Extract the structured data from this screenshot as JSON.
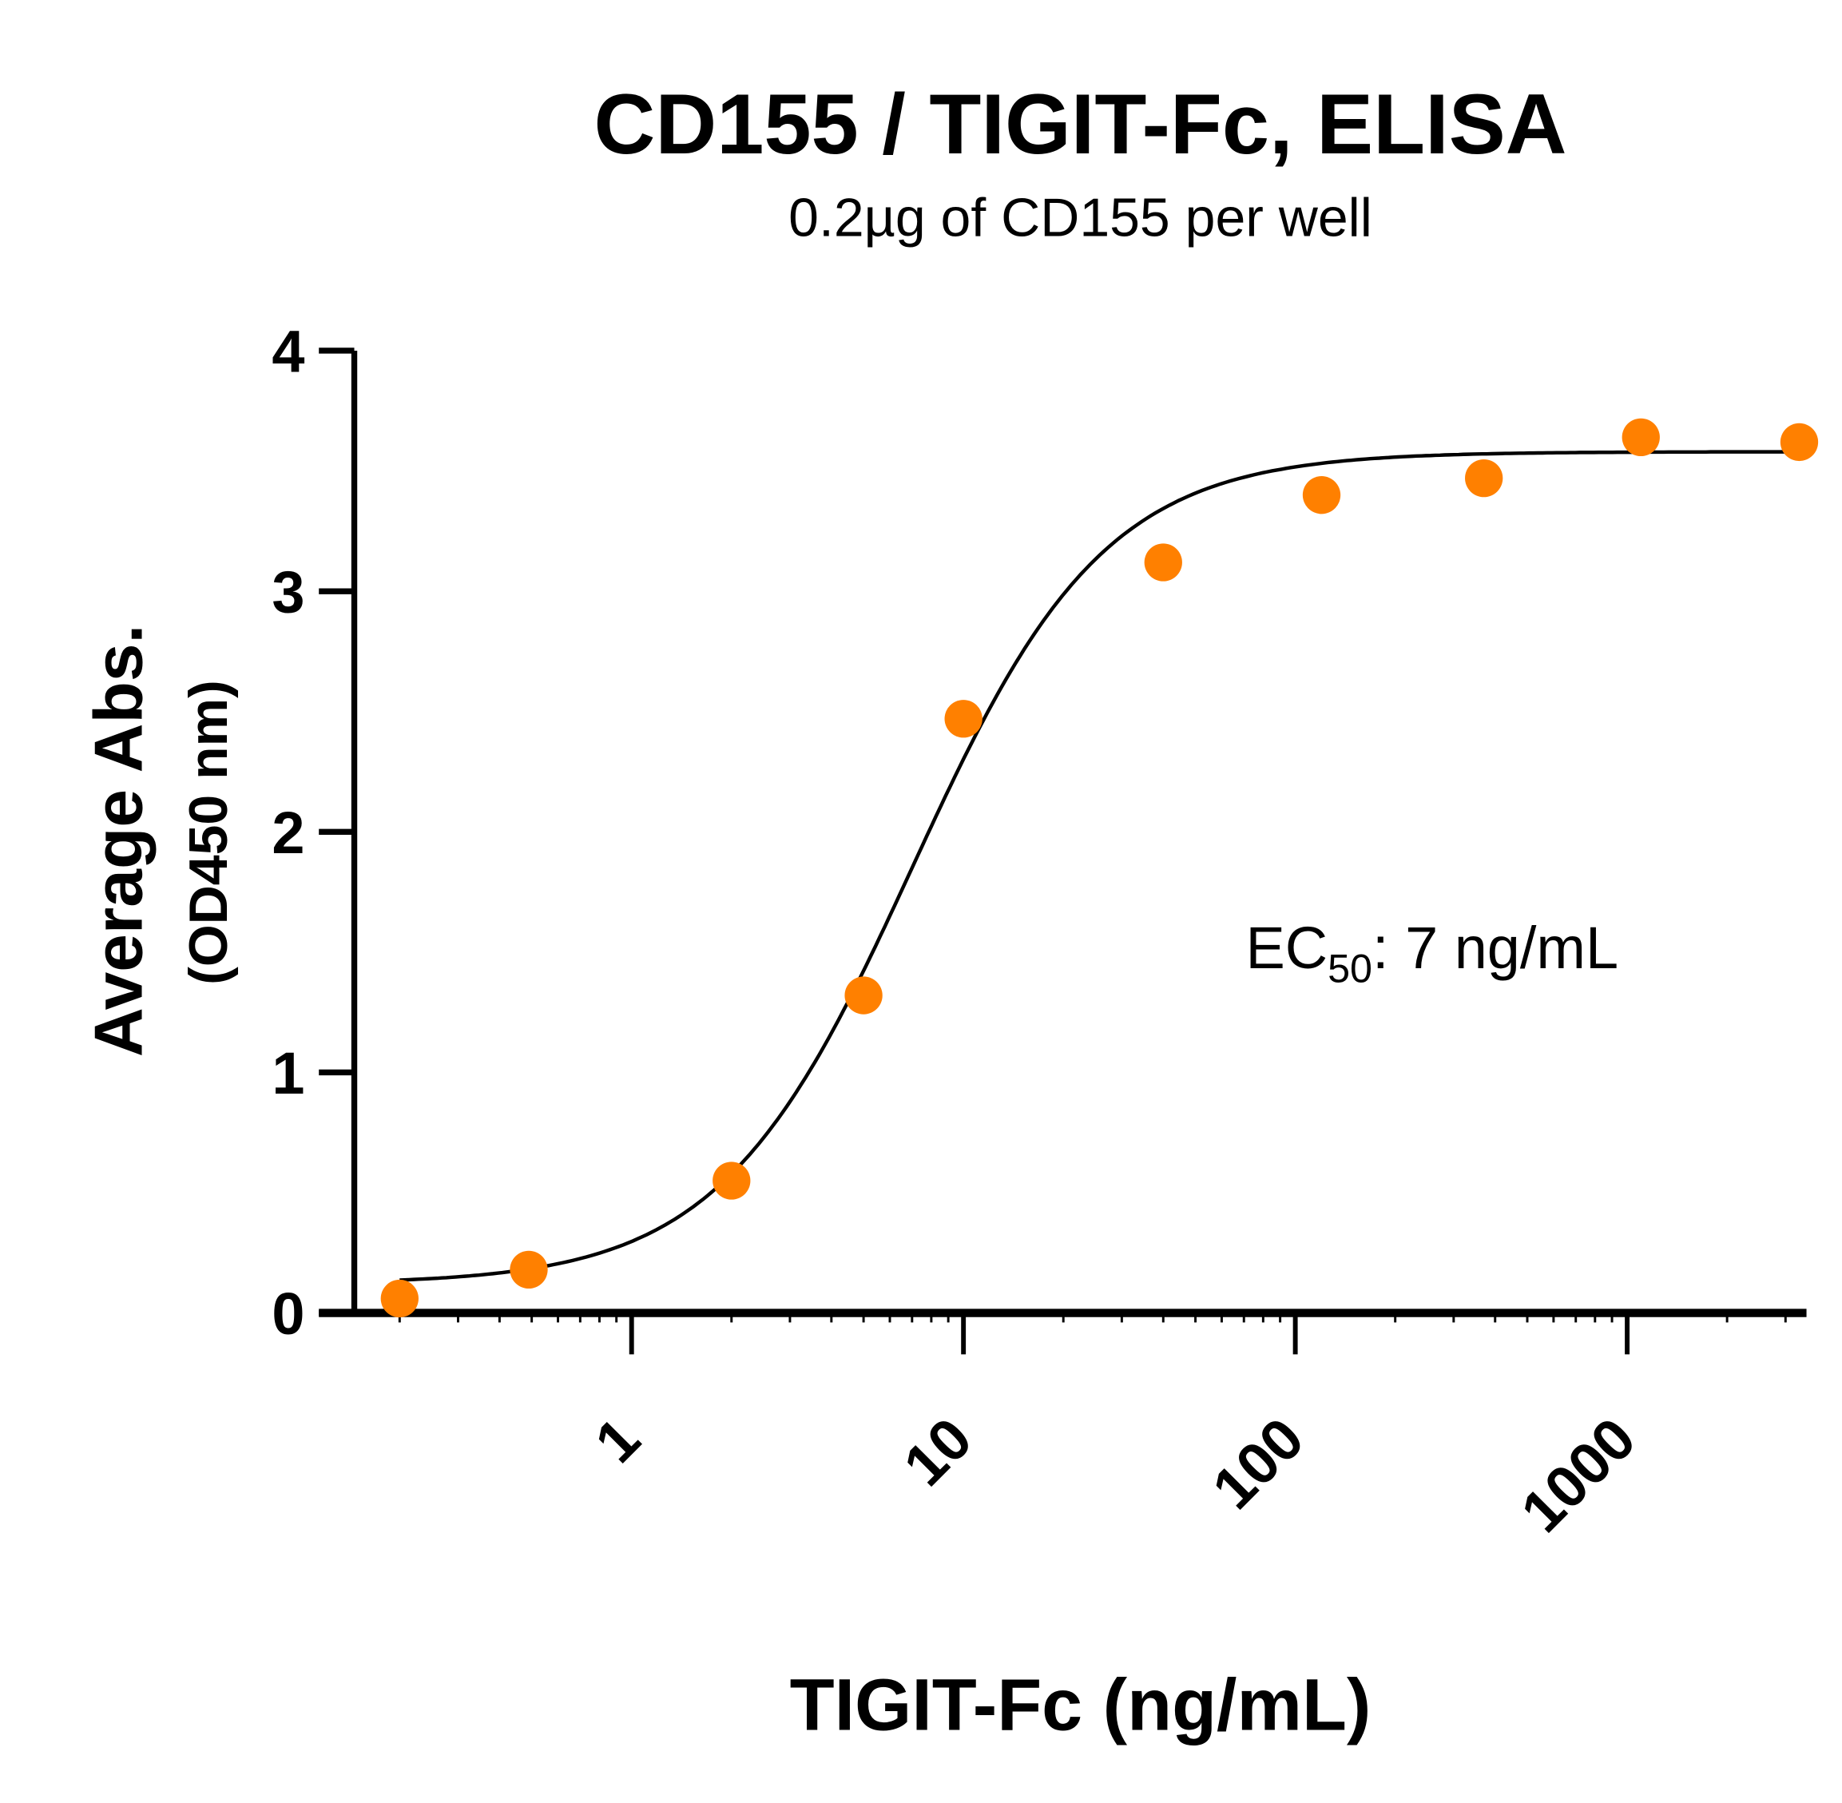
{
  "chart_data": {
    "type": "scatter",
    "title": "CD155 / TIGIT-Fc, ELISA",
    "subtitle": "0.2µg of CD155 per well",
    "xlabel": "TIGIT-Fc  (ng/mL)",
    "ylabel": "Average Abs.",
    "ylabel_sub": "(OD450 nm)",
    "xscale": "log",
    "xlim": [
      0.146,
      3470
    ],
    "ylim": [
      0,
      4
    ],
    "xticks": [
      1,
      10,
      100,
      1000
    ],
    "xtick_labels": [
      "1",
      "10",
      "100",
      "1000"
    ],
    "yticks": [
      0,
      1,
      2,
      3,
      4
    ],
    "ytick_labels": [
      "0",
      "1",
      "2",
      "3",
      "4"
    ],
    "grid": false,
    "series": [
      {
        "name": "TIGIT-Fc",
        "color": "#ff8000",
        "x": [
          0.2,
          0.49,
          2.0,
          5.0,
          10,
          40,
          120,
          370,
          1100,
          3300
        ],
        "y": [
          0.06,
          0.18,
          0.55,
          1.32,
          2.47,
          3.12,
          3.4,
          3.47,
          3.64,
          3.62
        ]
      }
    ],
    "fit": {
      "model": "4PL",
      "bottom": 0.12,
      "top": 3.58,
      "ec50": 7,
      "hill": 1.5,
      "color": "#000000"
    },
    "annotation": {
      "prefix": "EC",
      "subscript": "50",
      "suffix": ": 7 ng/mL"
    }
  }
}
